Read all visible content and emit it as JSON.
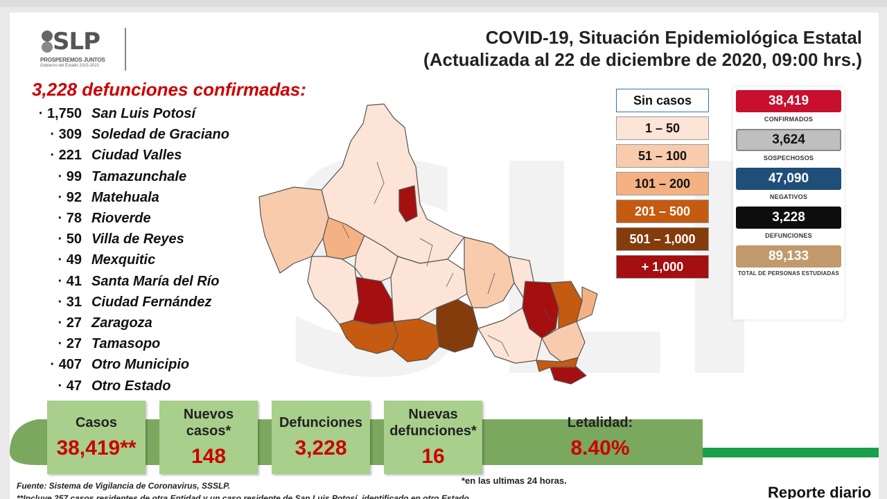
{
  "header": {
    "title_line1": "COVID-19, Situación Epidemiológica Estatal",
    "title_line2": "(Actualizada al 22 de diciembre de 2020, 09:00 hrs.)",
    "logo_text": "SLP",
    "logo_slogan": "PROSPEREMOS JUNTOS",
    "logo_sub": "Gobierno del Estado 2015-2021"
  },
  "deaths": {
    "heading": "3,228 defunciones confirmadas:",
    "rows": [
      {
        "num": "1,750",
        "name": "San Luis Potosí"
      },
      {
        "num": "309",
        "name": "Soledad de Graciano"
      },
      {
        "num": "221",
        "name": "Ciudad Valles"
      },
      {
        "num": "99",
        "name": "Tamazunchale"
      },
      {
        "num": "92",
        "name": "Matehuala"
      },
      {
        "num": "78",
        "name": "Rioverde"
      },
      {
        "num": "50",
        "name": "Villa de Reyes"
      },
      {
        "num": "49",
        "name": "Mexquitic"
      },
      {
        "num": "41",
        "name": "Santa María del Río"
      },
      {
        "num": "31",
        "name": "Ciudad Fernández"
      },
      {
        "num": "27",
        "name": "Zaragoza"
      },
      {
        "num": "27",
        "name": "Tamasopo"
      },
      {
        "num": "407",
        "name": "Otro Municipio"
      },
      {
        "num": "47",
        "name": "Otro Estado"
      }
    ]
  },
  "legend": [
    {
      "label": "Sin casos",
      "color": "#ffffff",
      "text": "#111111"
    },
    {
      "label": "1 – 50",
      "color": "#fce4d6",
      "text": "#111111"
    },
    {
      "label": "51 – 100",
      "color": "#f8cbad",
      "text": "#111111"
    },
    {
      "label": "101 – 200",
      "color": "#f4b183",
      "text": "#111111"
    },
    {
      "label": "201 – 500",
      "color": "#c55a11",
      "text": "#ffffff"
    },
    {
      "label": "501 – 1,000",
      "color": "#843c0c",
      "text": "#ffffff"
    },
    {
      "label": "+ 1,000",
      "color": "#a50f0f",
      "text": "#ffffff"
    }
  ],
  "stats": [
    {
      "value": "38,419",
      "label": "CONFIRMADOS",
      "color": "#c8102e"
    },
    {
      "value": "3,624",
      "label": "SOSPECHOSOS",
      "color": "#bfbfbf",
      "text": "#111111"
    },
    {
      "value": "47,090",
      "label": "NEGATIVOS",
      "color": "#1f4e79"
    },
    {
      "value": "3,228",
      "label": "DEFUNCIONES",
      "color": "#0d0d0d"
    },
    {
      "value": "89,133",
      "label": "TOTAL DE PERSONAS ESTUDIADAS",
      "color": "#c19a6b"
    }
  ],
  "cards": [
    {
      "label": "Casos",
      "value": "38,419**"
    },
    {
      "label": "Nuevos casos*",
      "value": "148"
    },
    {
      "label": "Defunciones",
      "value": "3,228"
    },
    {
      "label": "Nuevas defunciones*",
      "value": "16"
    },
    {
      "label": "Letalidad:",
      "value": "8.40%"
    }
  ],
  "footer": {
    "source": "Fuente: Sistema de Vigilancia de Coronavirus, SSSLP.",
    "note": "**Incluye 257 casos residentes de otra Entidad y un caso residente de San Luis Potosí, identificado en otro Estado.",
    "note_24h": "*en las ultimas 24 horas.",
    "report": "Reporte diario"
  },
  "colors": {
    "card_green": "#a8cf8c",
    "band_green": "#7aa85e",
    "line_green": "#18a04a",
    "accent_red": "#cc0000"
  }
}
